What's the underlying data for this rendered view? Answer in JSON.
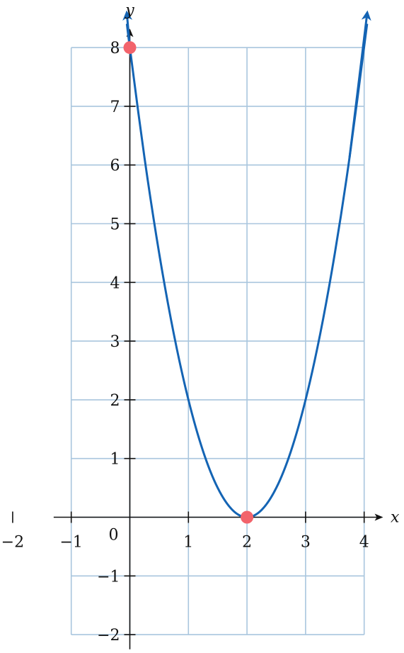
{
  "chart_data": {
    "type": "line",
    "xlabel": "x",
    "ylabel": "y",
    "xlim": [
      -1,
      4
    ],
    "ylim": [
      -2,
      8
    ],
    "grid": true,
    "origin_label": "0",
    "x_ticks": [
      {
        "value": -2,
        "label": "−2"
      },
      {
        "value": -1,
        "label": "−1"
      },
      {
        "value": 1,
        "label": "1"
      },
      {
        "value": 2,
        "label": "2"
      },
      {
        "value": 3,
        "label": "3"
      },
      {
        "value": 4,
        "label": "4"
      }
    ],
    "y_ticks": [
      {
        "value": -2,
        "label": "−2"
      },
      {
        "value": -1,
        "label": "−1"
      },
      {
        "value": 1,
        "label": "1"
      },
      {
        "value": 2,
        "label": "2"
      },
      {
        "value": 3,
        "label": "3"
      },
      {
        "value": 4,
        "label": "4"
      },
      {
        "value": 5,
        "label": "5"
      },
      {
        "value": 6,
        "label": "6"
      },
      {
        "value": 7,
        "label": "7"
      },
      {
        "value": 8,
        "label": "8"
      }
    ],
    "series": [
      {
        "function": "2(x-2)^2",
        "color": "#1464b4",
        "x": [
          -0.05,
          0,
          0.25,
          0.5,
          0.75,
          1,
          1.25,
          1.5,
          1.75,
          2,
          2.25,
          2.5,
          2.75,
          3,
          3.25,
          3.5,
          3.75,
          4.05
        ],
        "y": [
          8.405,
          8,
          6.125,
          4.5,
          3.125,
          2,
          1.125,
          0.5,
          0.125,
          0,
          0.125,
          0.5,
          1.125,
          2,
          3.125,
          4.5,
          6.125,
          8.405
        ]
      }
    ],
    "points": [
      {
        "x": 0,
        "y": 8,
        "color": "#f2636b"
      },
      {
        "x": 2,
        "y": 0,
        "color": "#f2636b"
      }
    ],
    "colors": {
      "grid": "#a9c6de",
      "axis": "#111111",
      "curve": "#1464b4",
      "point": "#f2636b"
    }
  }
}
